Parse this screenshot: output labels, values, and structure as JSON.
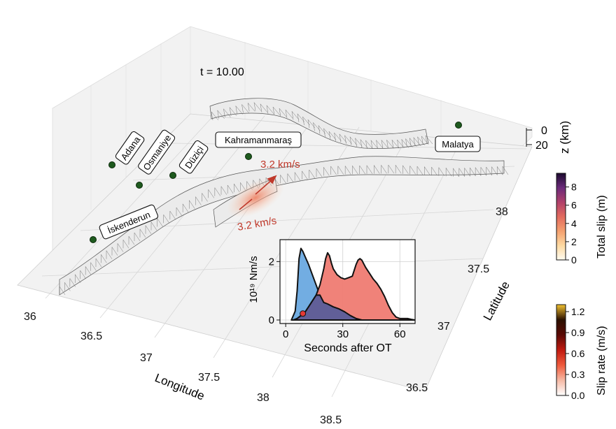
{
  "time_label": "t = 10.00",
  "scene": {
    "x_axis_label": "Longitude",
    "y_axis_label": "Latitude",
    "z_axis_label": "z (km)",
    "x_ticks": [
      36.0,
      36.5,
      37.0,
      37.5,
      38.0,
      38.5
    ],
    "y_ticks": [
      36.5,
      37.0,
      37.5,
      38.0
    ],
    "z_ticks": [
      0,
      20
    ],
    "cities": [
      {
        "name": "Adana",
        "lon": 35.9,
        "lat": 37.55
      },
      {
        "name": "Osmaniye",
        "lon": 36.25,
        "lat": 37.43
      },
      {
        "name": "Düziçi",
        "lon": 36.42,
        "lat": 37.68
      },
      {
        "name": "Kahramanmaraş",
        "lon": 36.93,
        "lat": 37.85
      },
      {
        "name": "İskenderun",
        "lon": 36.0,
        "lat": 36.95
      },
      {
        "name": "Malatya",
        "lon": 38.3,
        "lat": 38.65
      }
    ],
    "rupture_speed_labels": [
      "3.2 km/s",
      "3.2 km/s"
    ]
  },
  "colorbars": [
    {
      "label": "Total slip (m)",
      "ticks": [
        "0",
        "2",
        "4",
        "6",
        "8"
      ],
      "min": 0,
      "max": 9.5,
      "stops": [
        "#fffbf0",
        "#fdd9a1",
        "#f4a06f",
        "#e26a5e",
        "#b0406a",
        "#6b2a7a",
        "#1a0a2e"
      ]
    },
    {
      "label": "Slip rate (m/s)",
      "ticks": [
        "0.0",
        "0.3",
        "0.6",
        "0.9",
        "1.2"
      ],
      "min": 0,
      "max": 1.3,
      "stops": [
        "#ffffff",
        "#f6b9a4",
        "#ef5a3c",
        "#c11a10",
        "#5a0a05",
        "#2b1000",
        "#f2c230"
      ]
    }
  ],
  "chart_data": {
    "type": "area",
    "xlabel": "Seconds after OT",
    "ylabel": "10¹⁹ Nm/s",
    "x_ticks": [
      0,
      30,
      60
    ],
    "y_ticks": [
      0,
      2
    ],
    "xlim": [
      -3,
      68
    ],
    "ylim": [
      -0.12,
      2.75
    ],
    "marker": {
      "x": 9,
      "y": 0.22
    },
    "series": [
      {
        "color": "#6aa9e0",
        "x": [
          3,
          5,
          6,
          7,
          8,
          9,
          10,
          12,
          14,
          16,
          18,
          20,
          22,
          25,
          28,
          31,
          34,
          37,
          40
        ],
        "y": [
          0,
          0.3,
          1.0,
          2.1,
          2.45,
          2.35,
          2.2,
          1.9,
          1.55,
          1.2,
          0.85,
          0.6,
          0.55,
          0.45,
          0.38,
          0.28,
          0.15,
          0.05,
          0
        ]
      },
      {
        "color": "#ef7b72",
        "x": [
          4,
          6,
          8,
          10,
          12,
          14,
          16,
          18,
          20,
          21,
          22,
          23,
          24,
          25,
          27,
          29,
          31,
          33,
          35,
          37,
          38,
          39,
          40,
          42,
          44,
          46,
          48,
          50,
          52,
          54,
          56,
          58,
          60,
          62,
          64,
          66,
          68
        ],
        "y": [
          0,
          0.05,
          0.15,
          0.25,
          0.45,
          0.65,
          0.85,
          1.2,
          1.75,
          2.1,
          2.3,
          2.2,
          1.95,
          1.75,
          1.55,
          1.45,
          1.4,
          1.45,
          1.5,
          1.9,
          2.05,
          2.1,
          2.05,
          1.8,
          1.6,
          1.4,
          1.25,
          1.05,
          0.8,
          0.5,
          0.25,
          0.1,
          0.05,
          0.05,
          0.05,
          0.02,
          0
        ]
      },
      {
        "color": "#5a5e9a",
        "x": [
          4,
          6,
          8,
          10,
          12,
          14,
          16,
          18,
          20,
          22,
          25,
          28,
          31,
          34,
          37,
          40
        ],
        "y": [
          0,
          0.05,
          0.15,
          0.25,
          0.45,
          0.65,
          0.85,
          0.85,
          0.6,
          0.55,
          0.45,
          0.38,
          0.28,
          0.15,
          0.05,
          0
        ]
      }
    ]
  }
}
